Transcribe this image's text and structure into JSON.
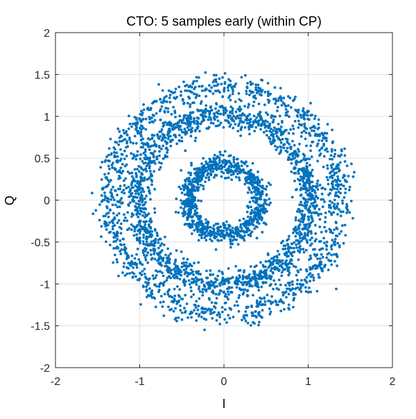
{
  "chart_data": {
    "type": "scatter",
    "title": "CTO: 5 samples early (within CP)",
    "xlabel": "I",
    "ylabel": "Q",
    "xlim": [
      -2,
      2
    ],
    "ylim": [
      -2,
      2
    ],
    "x_ticks": [
      "-2",
      "-1",
      "0",
      "1",
      "2"
    ],
    "y_ticks": [
      "-2",
      "-1.5",
      "-1",
      "-0.5",
      "0",
      "0.5",
      "1",
      "1.5",
      "2"
    ],
    "grid": true,
    "marker_color": "#0072BD",
    "rings": [
      {
        "radius": 0.42,
        "spread": 0.06,
        "count": 900
      },
      {
        "radius": 1.02,
        "spread": 0.08,
        "count": 1700
      },
      {
        "radius": 1.36,
        "spread": 0.08,
        "count": 1200
      }
    ]
  }
}
